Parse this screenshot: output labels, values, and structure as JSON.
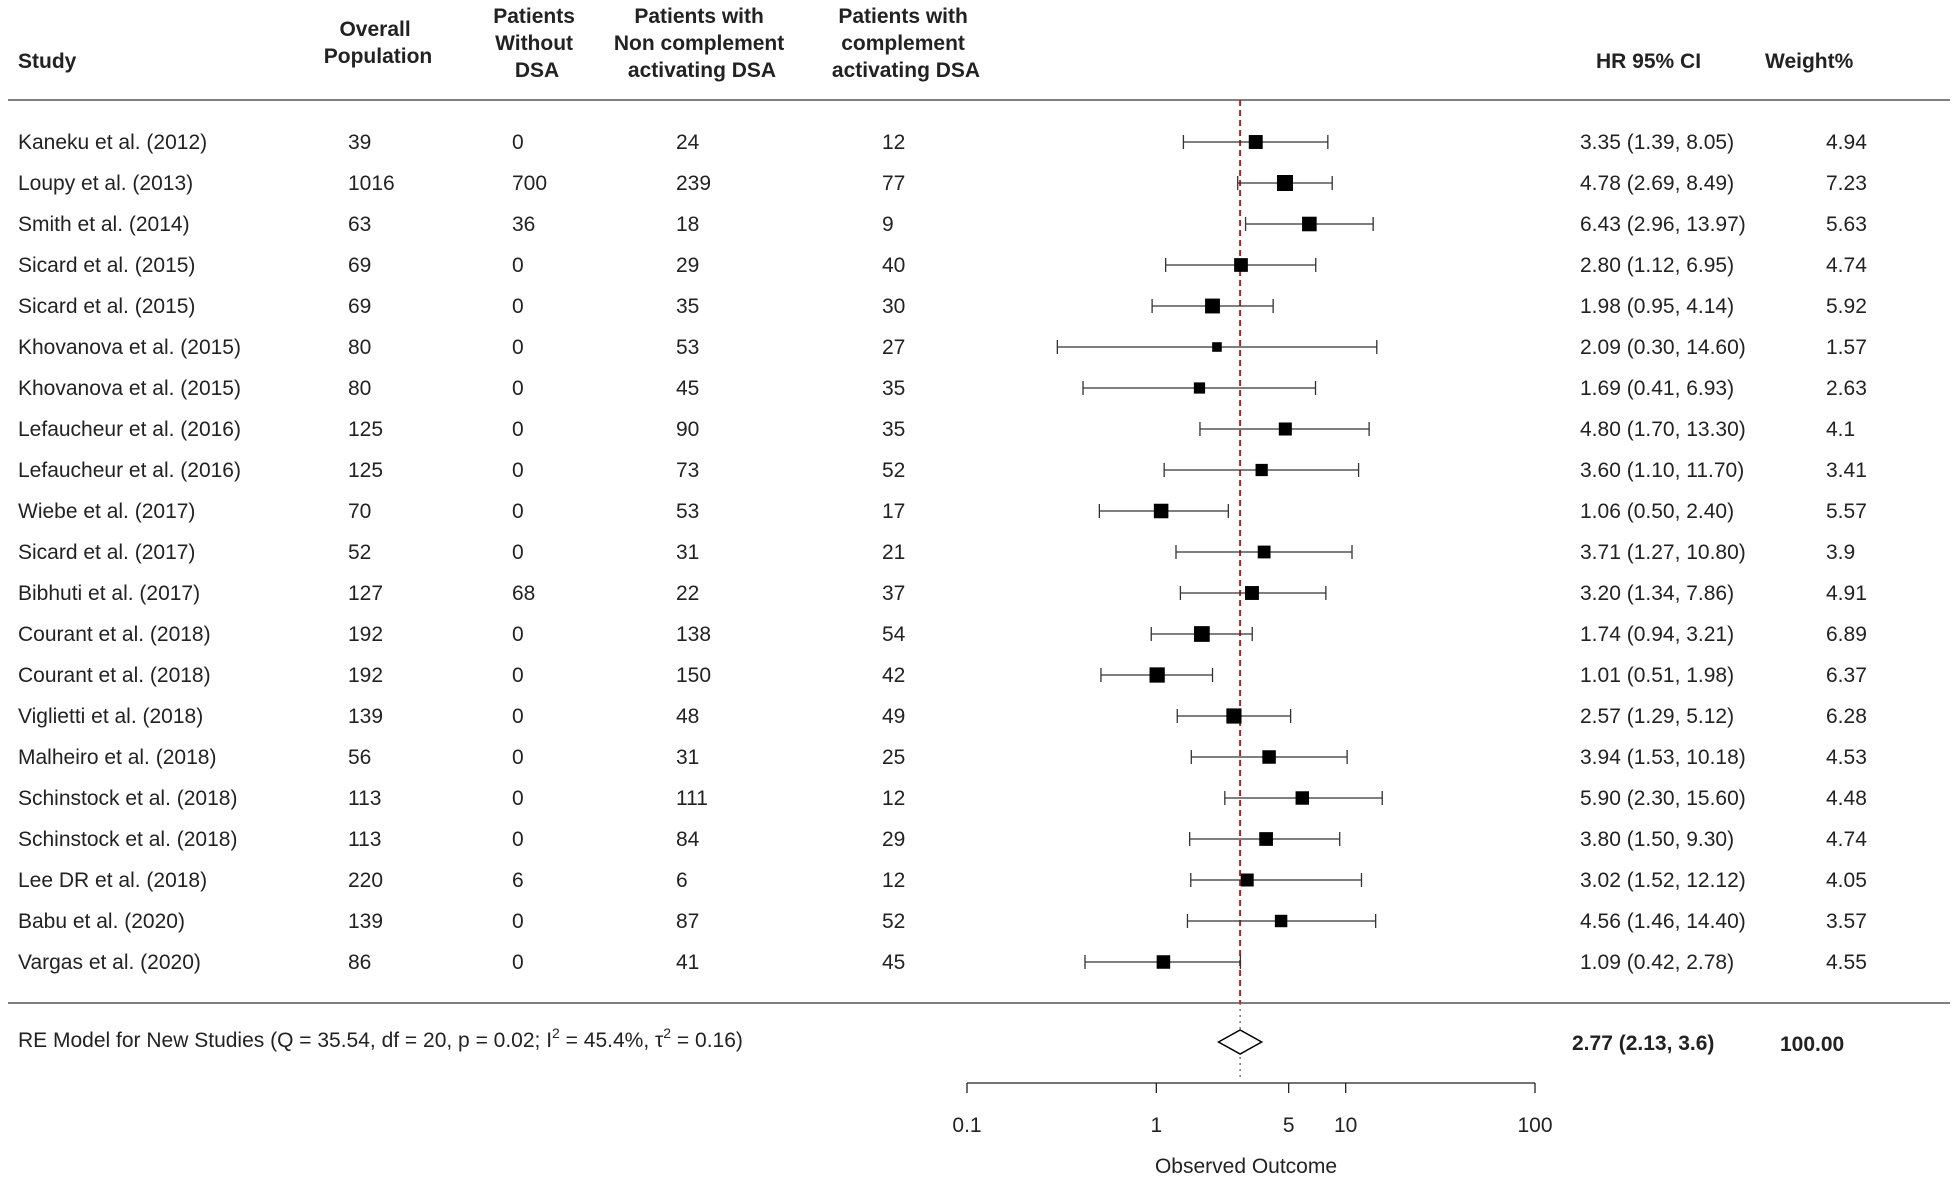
{
  "chart_data": {
    "type": "forest",
    "columns": {
      "study": "Study",
      "overall": [
        "Overall",
        "Population"
      ],
      "without": [
        "Patients",
        "Without",
        "DSA"
      ],
      "noncomp": [
        "Patients with",
        "Non complement",
        "activating DSA"
      ],
      "comp": [
        "Patients with",
        "complement",
        "activating DSA"
      ],
      "hr": "HR 95% CI",
      "weight": "Weight%"
    },
    "rows": [
      {
        "study": "Kaneku et al. (2012)",
        "overall": "39",
        "without": "0",
        "noncomp": "24",
        "comp": "12",
        "hr": 3.35,
        "lo": 1.39,
        "hi": 8.05,
        "ci_text": "3.35 (1.39, 8.05)",
        "weight": "4.94"
      },
      {
        "study": "Loupy et al. (2013)",
        "overall": "1016",
        "without": "700",
        "noncomp": "239",
        "comp": "77",
        "hr": 4.78,
        "lo": 2.69,
        "hi": 8.49,
        "ci_text": "4.78 (2.69, 8.49)",
        "weight": "7.23"
      },
      {
        "study": "Smith et al. (2014)",
        "overall": "63",
        "without": "36",
        "noncomp": "18",
        "comp": "9",
        "hr": 6.43,
        "lo": 2.96,
        "hi": 13.97,
        "ci_text": "6.43 (2.96, 13.97)",
        "weight": "5.63"
      },
      {
        "study": "Sicard et al. (2015)",
        "overall": "69",
        "without": "0",
        "noncomp": "29",
        "comp": "40",
        "hr": 2.8,
        "lo": 1.12,
        "hi": 6.95,
        "ci_text": "2.80 (1.12, 6.95)",
        "weight": "4.74"
      },
      {
        "study": "Sicard et al. (2015)",
        "overall": "69",
        "without": "0",
        "noncomp": "35",
        "comp": "30",
        "hr": 1.98,
        "lo": 0.95,
        "hi": 4.14,
        "ci_text": "1.98 (0.95, 4.14)",
        "weight": "5.92"
      },
      {
        "study": "Khovanova et al. (2015)",
        "overall": "80",
        "without": "0",
        "noncomp": "53",
        "comp": "27",
        "hr": 2.09,
        "lo": 0.3,
        "hi": 14.6,
        "ci_text": "2.09 (0.30, 14.60)",
        "weight": "1.57"
      },
      {
        "study": "Khovanova et al. (2015)",
        "overall": "80",
        "without": "0",
        "noncomp": "45",
        "comp": "35",
        "hr": 1.69,
        "lo": 0.41,
        "hi": 6.93,
        "ci_text": "1.69 (0.41, 6.93)",
        "weight": "2.63"
      },
      {
        "study": "Lefaucheur et al. (2016)",
        "overall": "125",
        "without": "0",
        "noncomp": "90",
        "comp": "35",
        "hr": 4.8,
        "lo": 1.7,
        "hi": 13.3,
        "ci_text": "4.80 (1.70, 13.30)",
        "weight": "4.1"
      },
      {
        "study": "Lefaucheur et al. (2016)",
        "overall": "125",
        "without": "0",
        "noncomp": "73",
        "comp": "52",
        "hr": 3.6,
        "lo": 1.1,
        "hi": 11.7,
        "ci_text": "3.60 (1.10, 11.70)",
        "weight": "3.41"
      },
      {
        "study": "Wiebe et al. (2017)",
        "overall": "70",
        "without": "0",
        "noncomp": "53",
        "comp": "17",
        "hr": 1.06,
        "lo": 0.5,
        "hi": 2.4,
        "ci_text": "1.06 (0.50, 2.40)",
        "weight": "5.57"
      },
      {
        "study": "Sicard et al. (2017)",
        "overall": "52",
        "without": "0",
        "noncomp": "31",
        "comp": "21",
        "hr": 3.71,
        "lo": 1.27,
        "hi": 10.8,
        "ci_text": "3.71 (1.27, 10.80)",
        "weight": "3.9"
      },
      {
        "study": "Bibhuti et al. (2017)",
        "overall": "127",
        "without": "68",
        "noncomp": "22",
        "comp": "37",
        "hr": 3.2,
        "lo": 1.34,
        "hi": 7.86,
        "ci_text": "3.20 (1.34, 7.86)",
        "weight": "4.91"
      },
      {
        "study": "Courant et al. (2018)",
        "overall": "192",
        "without": "0",
        "noncomp": "138",
        "comp": "54",
        "hr": 1.74,
        "lo": 0.94,
        "hi": 3.21,
        "ci_text": "1.74 (0.94, 3.21)",
        "weight": "6.89"
      },
      {
        "study": "Courant et al. (2018)",
        "overall": "192",
        "without": "0",
        "noncomp": "150",
        "comp": "42",
        "hr": 1.01,
        "lo": 0.51,
        "hi": 1.98,
        "ci_text": "1.01 (0.51, 1.98)",
        "weight": "6.37"
      },
      {
        "study": "Viglietti et al. (2018)",
        "overall": "139",
        "without": "0",
        "noncomp": "48",
        "comp": "49",
        "hr": 2.57,
        "lo": 1.29,
        "hi": 5.12,
        "ci_text": "2.57 (1.29, 5.12)",
        "weight": "6.28"
      },
      {
        "study": "Malheiro et al. (2018)",
        "overall": "56",
        "without": "0",
        "noncomp": "31",
        "comp": "25",
        "hr": 3.94,
        "lo": 1.53,
        "hi": 10.18,
        "ci_text": "3.94 (1.53, 10.18)",
        "weight": "4.53"
      },
      {
        "study": "Schinstock et al. (2018)",
        "overall": "113",
        "without": "0",
        "noncomp": "111",
        "comp": "12",
        "hr": 5.9,
        "lo": 2.3,
        "hi": 15.6,
        "ci_text": "5.90 (2.30, 15.60)",
        "weight": "4.48"
      },
      {
        "study": "Schinstock et al. (2018)",
        "overall": "113",
        "without": "0",
        "noncomp": "84",
        "comp": "29",
        "hr": 3.8,
        "lo": 1.5,
        "hi": 9.3,
        "ci_text": "3.80 (1.50, 9.30)",
        "weight": "4.74"
      },
      {
        "study": "Lee DR et al. (2018)",
        "overall": "220",
        "without": "6",
        "noncomp": "6",
        "comp": "12",
        "hr": 3.02,
        "lo": 1.52,
        "hi": 12.12,
        "ci_text": "3.02 (1.52, 12.12)",
        "weight": "4.05"
      },
      {
        "study": "Babu et al. (2020)",
        "overall": "139",
        "without": "0",
        "noncomp": "87",
        "comp": "52",
        "hr": 4.56,
        "lo": 1.46,
        "hi": 14.4,
        "ci_text": "4.56 (1.46, 14.40)",
        "weight": "3.57"
      },
      {
        "study": "Vargas et al. (2020)",
        "overall": "86",
        "without": "0",
        "noncomp": "41",
        "comp": "45",
        "hr": 1.09,
        "lo": 0.42,
        "hi": 2.78,
        "ci_text": "1.09 (0.42, 2.78)",
        "weight": "4.55"
      }
    ],
    "summary": {
      "label_prefix": "RE Model for New Studies (Q = 35.54, df = 20, p = 0.02; I",
      "i2_sup": "2",
      "label_mid": " = 45.4%, τ",
      "tau_sup": "2",
      "label_suffix": " = 0.16)",
      "hr": 2.77,
      "lo": 2.13,
      "hi": 3.6,
      "ci_text": "2.77 (2.13, 3.6)",
      "weight": "100.00"
    },
    "x_axis": {
      "scale": "log",
      "ticks": [
        0.1,
        1,
        5,
        10,
        100
      ],
      "tick_labels": [
        "0.1",
        "1",
        "5",
        "10",
        "100"
      ],
      "label": "Observed Outcome",
      "xlim": [
        0.1,
        100
      ]
    },
    "reference_line_at": 2.77,
    "colors": {
      "text": "#222222",
      "mark": "#000000",
      "reference": "#b22222",
      "rule": "#555555"
    }
  }
}
